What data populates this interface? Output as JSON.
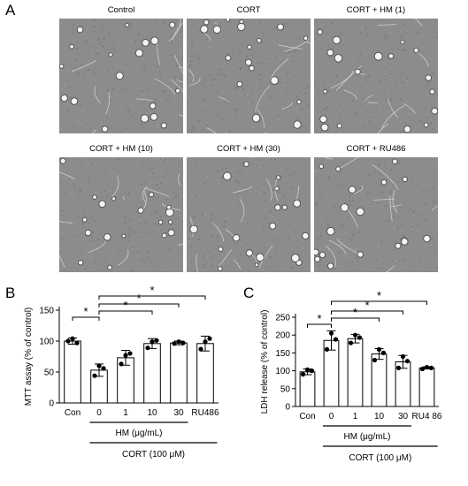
{
  "panels": {
    "A": {
      "letter": "A"
    },
    "B": {
      "letter": "B"
    },
    "C": {
      "letter": "C"
    }
  },
  "micrographs": [
    {
      "title": "Control"
    },
    {
      "title": "CORT"
    },
    {
      "title": "CORT + HM (1)"
    },
    {
      "title": "CORT + HM (10)"
    },
    {
      "title": "CORT + HM (30)"
    },
    {
      "title": "CORT + RU486"
    }
  ],
  "chart_data": [
    {
      "type": "bar",
      "panel": "B",
      "categories": [
        "Con",
        "0",
        "1",
        "10",
        "30",
        "RU486"
      ],
      "values": [
        100,
        53,
        73,
        96,
        97,
        96
      ],
      "errors": [
        5,
        10,
        12,
        8,
        3,
        12
      ],
      "points": [
        [
          100,
          104,
          97
        ],
        [
          44,
          60,
          56
        ],
        [
          63,
          77,
          80
        ],
        [
          89,
          99,
          101
        ],
        [
          96,
          99,
          97
        ],
        [
          87,
          99,
          104
        ]
      ],
      "xlabel": "",
      "ylabel": "MTT assay (% of control)",
      "ylim": [
        0,
        150
      ],
      "yticks": [
        0,
        50,
        100,
        150
      ],
      "treatment_label": "HM (μg/mL)",
      "condition_label": "CORT (100 μM)",
      "significance": [
        {
          "from": "Con",
          "to": "0",
          "label": "*"
        },
        {
          "from": "0",
          "to": "10",
          "label": "*"
        },
        {
          "from": "0",
          "to": "30",
          "label": "*"
        },
        {
          "from": "0",
          "to": "RU486",
          "label": "*"
        }
      ]
    },
    {
      "type": "bar",
      "panel": "C",
      "categories": [
        "Con",
        "0",
        "1",
        "10",
        "30",
        "RU4 86"
      ],
      "values": [
        97,
        185,
        190,
        147,
        125,
        108
      ],
      "errors": [
        8,
        27,
        12,
        15,
        18,
        3
      ],
      "points": [
        [
          90,
          103,
          100
        ],
        [
          160,
          205,
          188
        ],
        [
          178,
          200,
          193
        ],
        [
          130,
          160,
          150
        ],
        [
          108,
          140,
          127
        ],
        [
          105,
          110,
          108
        ]
      ],
      "xlabel": "",
      "ylabel": "LDH release (% of control)",
      "ylim": [
        0,
        250
      ],
      "yticks": [
        0,
        50,
        100,
        150,
        200,
        250
      ],
      "treatment_label": "HM (μg/mL)",
      "condition_label": "CORT (100 μM)",
      "significance": [
        {
          "from": "Con",
          "to": "0",
          "label": "*"
        },
        {
          "from": "0",
          "to": "10",
          "label": "*"
        },
        {
          "from": "0",
          "to": "30",
          "label": "*"
        },
        {
          "from": "0",
          "to": "RU4 86",
          "label": "*"
        }
      ]
    }
  ]
}
